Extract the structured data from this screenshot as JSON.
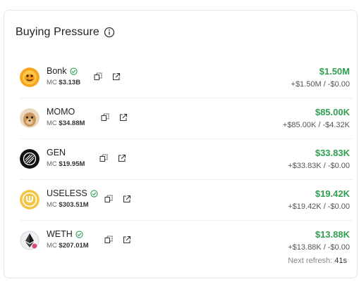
{
  "title": "Buying Pressure",
  "tokens": [
    {
      "name": "Bonk",
      "verified": true,
      "mc_label": "MC",
      "mc": "$3.13B",
      "main": "$1.50M",
      "sub": "+$1.50M / -$0.00",
      "icon": "bonk-logo-icon"
    },
    {
      "name": "MOMO",
      "verified": false,
      "mc_label": "MC",
      "mc": "$34.88M",
      "main": "$85.00K",
      "sub": "+$85.00K / -$4.32K",
      "icon": "momo-logo-icon"
    },
    {
      "name": "GEN",
      "verified": false,
      "mc_label": "MC",
      "mc": "$19.95M",
      "main": "$33.83K",
      "sub": "+$33.83K / -$0.00",
      "icon": "gen-logo-icon"
    },
    {
      "name": "USELESS",
      "verified": true,
      "mc_label": "MC",
      "mc": "$303.51M",
      "main": "$19.42K",
      "sub": "+$19.42K / -$0.00",
      "icon": "useless-logo-icon"
    },
    {
      "name": "WETH",
      "verified": true,
      "mc_label": "MC",
      "mc": "$207.01M",
      "main": "$13.88K",
      "sub": "+$13.88K / -$0.00",
      "icon": "weth-logo-icon"
    }
  ],
  "footer": {
    "label": "Next refresh:",
    "value": "41s"
  },
  "colors": {
    "positive": "#2e9e4f",
    "verified": "#2e9e4f"
  }
}
